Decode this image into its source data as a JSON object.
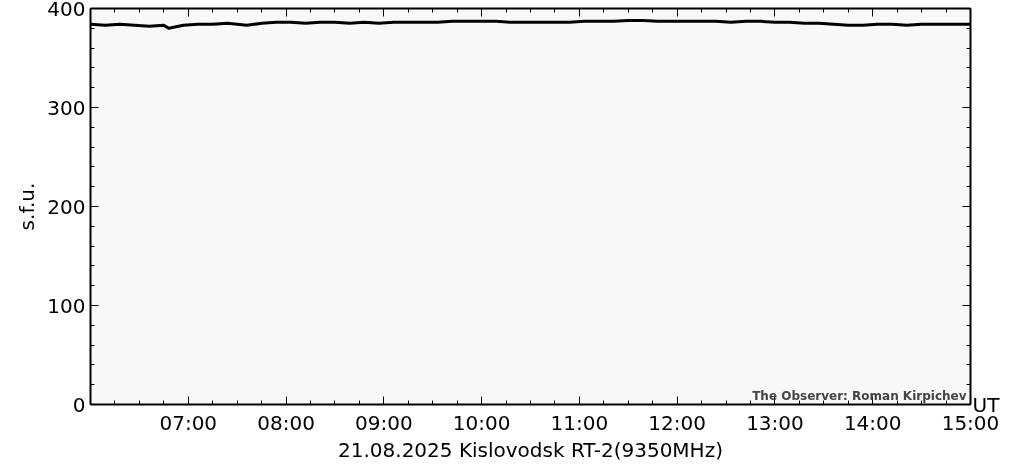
{
  "chart_data": {
    "type": "line",
    "xlabel": "21.08.2025 Kislovodsk RT-2(9350MHz)",
    "ylabel": "s.f.u.",
    "annotations": [
      "The Observer: Roman Kirpichev",
      "UT"
    ],
    "x": [
      6.0,
      6.15,
      6.3,
      6.45,
      6.6,
      6.75,
      6.8,
      6.85,
      6.95,
      7.1,
      7.25,
      7.4,
      7.5,
      7.6,
      7.75,
      7.9,
      8.05,
      8.2,
      8.35,
      8.5,
      8.65,
      8.8,
      8.95,
      9.1,
      9.25,
      9.4,
      9.55,
      9.7,
      9.85,
      10.0,
      10.15,
      10.3,
      10.45,
      10.6,
      10.75,
      10.9,
      11.05,
      11.2,
      11.35,
      11.5,
      11.65,
      11.8,
      11.95,
      12.1,
      12.25,
      12.4,
      12.55,
      12.7,
      12.85,
      13.0,
      13.15,
      13.3,
      13.45,
      13.6,
      13.75,
      13.9,
      14.05,
      14.2,
      14.35,
      14.5,
      14.65,
      14.8,
      15.0
    ],
    "series": [
      {
        "color": "#000000",
        "values": [
          384,
          383,
          384,
          383,
          382,
          383,
          380,
          381,
          383,
          384,
          384,
          385,
          384,
          383,
          385,
          386,
          386,
          385,
          386,
          386,
          385,
          386,
          385,
          386,
          386,
          386,
          386,
          387,
          387,
          387,
          387,
          386,
          386,
          386,
          386,
          386,
          387,
          387,
          387,
          388,
          388,
          387,
          387,
          387,
          387,
          387,
          386,
          387,
          387,
          386,
          386,
          385,
          385,
          384,
          383,
          383,
          384,
          384,
          383,
          384,
          384,
          384,
          384
        ]
      }
    ],
    "xlim": [
      6,
      15
    ],
    "ylim": [
      0,
      400
    ],
    "xticks": [
      {
        "value": 7,
        "label": "07:00"
      },
      {
        "value": 8,
        "label": "08:00"
      },
      {
        "value": 9,
        "label": "09:00"
      },
      {
        "value": 10,
        "label": "10:00"
      },
      {
        "value": 11,
        "label": "11:00"
      },
      {
        "value": 12,
        "label": "12:00"
      },
      {
        "value": 13,
        "label": "13:00"
      },
      {
        "value": 14,
        "label": "14:00"
      },
      {
        "value": 15,
        "label": "15:00"
      }
    ],
    "yticks": [
      0,
      100,
      200,
      300,
      400
    ],
    "grid": false
  }
}
